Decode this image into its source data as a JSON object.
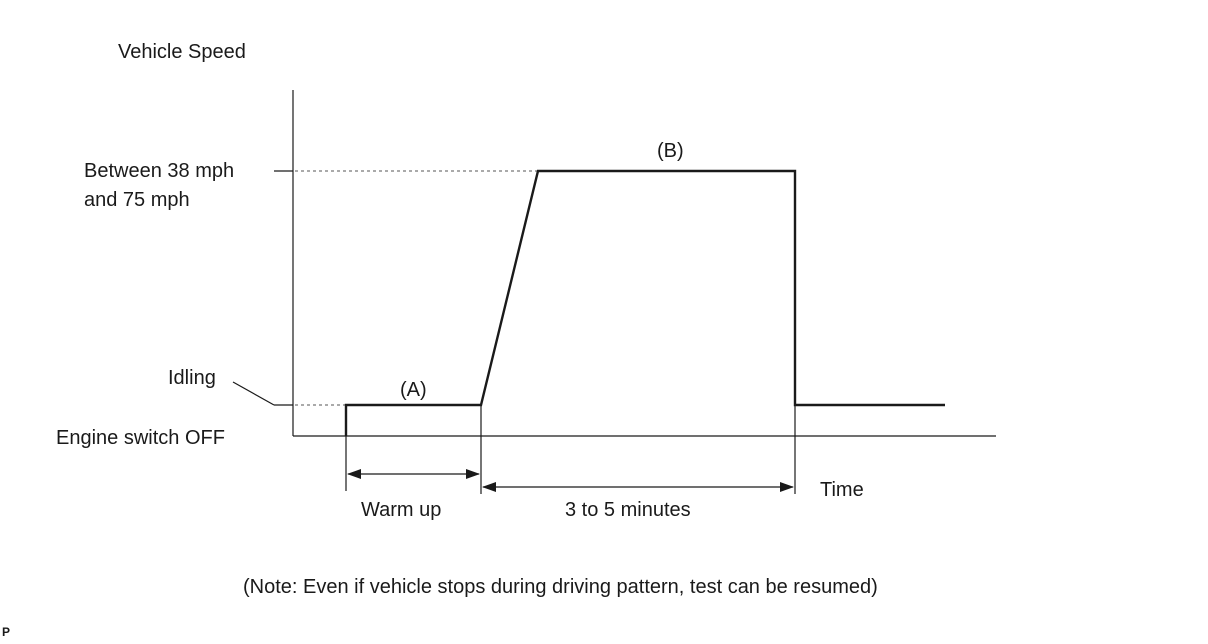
{
  "diagram": {
    "y_axis_label": "Vehicle Speed",
    "x_axis_label": "Time",
    "speed_level_line1": "Between 38 mph",
    "speed_level_line2": "and 75 mph",
    "idling_label": "Idling",
    "engine_off_label": "Engine switch OFF",
    "phase_a_label": "(A)",
    "phase_b_label": "(B)",
    "warm_up_label": "Warm up",
    "duration_label": "3 to 5 minutes",
    "note": "(Note: Even if vehicle stops during driving pattern, test can be resumed)",
    "corner_mark": "P"
  }
}
